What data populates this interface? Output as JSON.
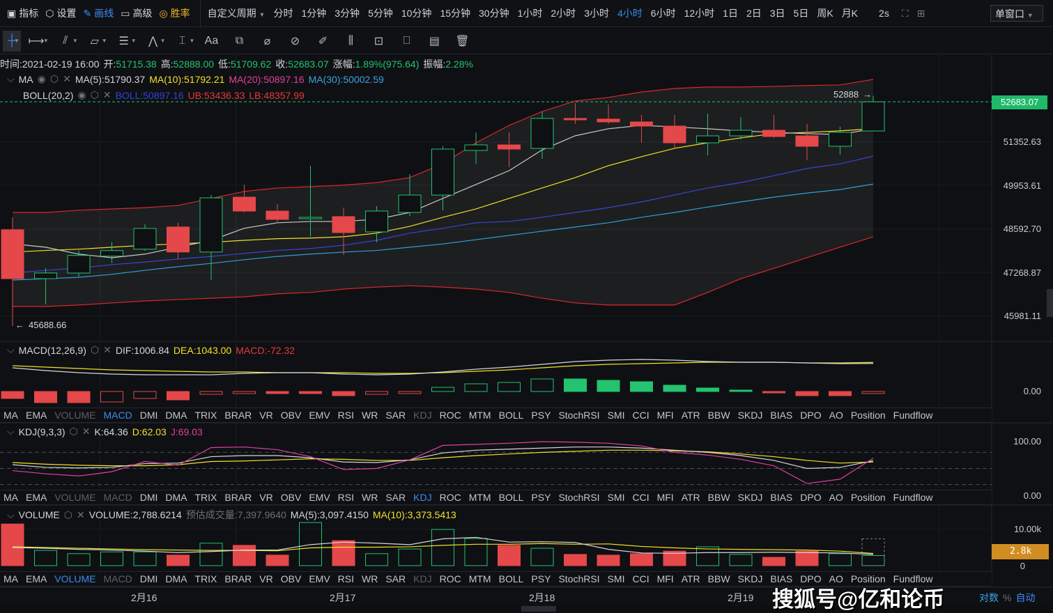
{
  "topbar": {
    "items": [
      {
        "icon": "chart-line-icon",
        "label": "指标"
      },
      {
        "icon": "gear-hex-icon",
        "label": "设置"
      },
      {
        "icon": "pencil-icon",
        "label": "画线"
      },
      {
        "icon": "printer-icon",
        "label": "高级"
      },
      {
        "icon": "target-icon",
        "label": "胜率"
      }
    ],
    "custom_period": "自定义周期",
    "periods": [
      "分时",
      "1分钟",
      "3分钟",
      "5分钟",
      "10分钟",
      "15分钟",
      "30分钟",
      "1小时",
      "2小时",
      "3小时",
      "4小时",
      "6小时",
      "12小时",
      "1日",
      "2日",
      "3日",
      "5日",
      "周K",
      "月K"
    ],
    "active_period": "4小时",
    "refresh": "2s",
    "window_mode": "单窗口"
  },
  "drawbar": {
    "tools": [
      "crosshair-icon",
      "horizontal-ray-icon",
      "trend-line-icon",
      "parallelogram-icon",
      "parallel-channel-icon",
      "wave-icon",
      "measure-icon",
      "text-icon",
      "magnet-icon",
      "eraser-icon",
      "ruler-icon",
      "brush-icon",
      "candle-tool-icon",
      "lock-icon",
      "bookmark-icon",
      "note-icon",
      "trash-icon"
    ],
    "text_tool": "Aa"
  },
  "info": {
    "time_label": "时间:",
    "time": "2021-02-19 16:00",
    "open_label": "开:",
    "open": "51715.38",
    "high_label": "高:",
    "high": "52888.00",
    "low_label": "低:",
    "low": "51709.62",
    "close_label": "收:",
    "close": "52683.07",
    "change_label": "涨幅:",
    "change": "1.89%(975.64)",
    "amp_label": "振幅:",
    "amp": "2.28%"
  },
  "ma": {
    "name": "MA",
    "ma5": "MA(5):51790.37",
    "ma10": "MA(10):51792.21",
    "ma20": "MA(20):50897.16",
    "ma30": "MA(30):50002.59"
  },
  "boll": {
    "name": "BOLL(20,2)",
    "mid": "BOLL:50897.16",
    "ub": "UB:53436.33",
    "lb": "LB:48357.99"
  },
  "price_axis": {
    "ticks": [
      "51352.63",
      "49953.61",
      "48592.70",
      "47268.87",
      "45981.11"
    ],
    "current": "52683.07",
    "high_marker": "52888",
    "low_marker": "45688.66",
    "scale": "log"
  },
  "macd": {
    "name": "MACD(12,26,9)",
    "dif": "DIF:1006.84",
    "dea": "DEA:1043.00",
    "macd": "MACD:-72.32",
    "zero": "0.00"
  },
  "kdj": {
    "name": "KDJ(9,3,3)",
    "k": "K:64.36",
    "d": "D:62.03",
    "j": "J:69.03",
    "top": "100.00",
    "bottom": "0.00"
  },
  "volume": {
    "name": "VOLUME",
    "vol": "VOLUME:2,788.6214",
    "est_label": "预估成交量:",
    "est": "7,397.9640",
    "ma5": "MA(5):3,097.4150",
    "ma10": "MA(10):3,373.5413",
    "top": "10.00k",
    "zero": "0",
    "current": "2.8k"
  },
  "indicator_tabs": [
    "MA",
    "EMA",
    "VOLUME",
    "MACD",
    "DMI",
    "DMA",
    "TRIX",
    "BRAR",
    "VR",
    "OBV",
    "EMV",
    "RSI",
    "WR",
    "SAR",
    "KDJ",
    "ROC",
    "MTM",
    "BOLL",
    "PSY",
    "StochRSI",
    "SMI",
    "CCI",
    "MFI",
    "ATR",
    "BBW",
    "SKDJ",
    "BIAS",
    "DPO",
    "AO",
    "Position",
    "Fundflow"
  ],
  "dates": [
    "2月16",
    "2月17",
    "2月18",
    "2月19"
  ],
  "bottom_right": {
    "log": "对数",
    "pct": "%",
    "auto": "自动"
  },
  "watermark": "搜狐号@亿和论币",
  "colors": {
    "up": "#23c36f",
    "down": "#e5484a",
    "accent": "#3b8cf0",
    "ma5": "#c9c9c9",
    "ma10": "#f2e02a",
    "boll_mid": "#3a45d8",
    "ma30": "#2f9fd8",
    "boll_band": "#d8282c"
  },
  "chart_data": {
    "type": "candlestick",
    "candles": [
      [
        48574,
        48960,
        45688.66,
        47091
      ],
      [
        47091,
        47405,
        46327,
        47260
      ],
      [
        47258,
        47937,
        47154,
        47789
      ],
      [
        47768,
        48190,
        47557,
        47937
      ],
      [
        47979,
        48745,
        47937,
        48616
      ],
      [
        48659,
        48788,
        47683,
        47894
      ],
      [
        47894,
        49656,
        47050,
        49568
      ],
      [
        49590,
        49987,
        49110,
        49154
      ],
      [
        49154,
        49372,
        48788,
        48895
      ],
      [
        48916,
        50587,
        48360,
        48959
      ],
      [
        48981,
        49262,
        47810,
        48488
      ],
      [
        48509,
        49306,
        48190,
        49154
      ],
      [
        49110,
        50319,
        49002,
        49656
      ],
      [
        49656,
        51217,
        49175,
        51126
      ],
      [
        51081,
        51671,
        50654,
        51262
      ],
      [
        51262,
        51671,
        50542,
        51126
      ],
      [
        51148,
        52361,
        50811,
        52130
      ],
      [
        52130,
        52639,
        51946,
        52084
      ],
      [
        52108,
        52593,
        51946,
        52015
      ],
      [
        52015,
        52246,
        51330,
        51877
      ],
      [
        51877,
        52246,
        51148,
        51330
      ],
      [
        51330,
        52292,
        50923,
        51557
      ],
      [
        51557,
        52176,
        51443,
        51740
      ],
      [
        51740,
        52246,
        51489,
        51535
      ],
      [
        51557,
        51946,
        50766,
        51217
      ],
      [
        51217,
        51854,
        50945,
        51671
      ],
      [
        51715.38,
        52888,
        51709.62,
        52683.07
      ]
    ],
    "ma5": [
      48144,
      48040,
      47830,
      47720,
      47830,
      48040,
      48250,
      48620,
      48790,
      48830,
      48830,
      48900,
      49110,
      49550,
      49990,
      50430,
      51100,
      51560,
      51790,
      51900,
      51850,
      51790,
      51720,
      51670,
      51630,
      51600,
      51790.37
    ],
    "ma10": [
      47890,
      47940,
      47980,
      48040,
      48100,
      48140,
      48190,
      48250,
      48300,
      48320,
      48360,
      48470,
      48680,
      48960,
      49220,
      49550,
      49880,
      50210,
      50590,
      50880,
      51150,
      51330,
      51490,
      51630,
      51670,
      51720,
      51792.21
    ],
    "boll_mid": [
      47260,
      47340,
      47410,
      47510,
      47590,
      47680,
      47760,
      47850,
      47940,
      48000,
      48100,
      48250,
      48470,
      48620,
      48790,
      48830,
      48960,
      49110,
      49260,
      49440,
      49660,
      49880,
      50050,
      50270,
      50500,
      50650,
      50897.16
    ],
    "ma30": [
      47050,
      47090,
      47130,
      47220,
      47340,
      47450,
      47550,
      47660,
      47760,
      47830,
      47890,
      47940,
      48040,
      48140,
      48270,
      48400,
      48530,
      48660,
      48790,
      48960,
      49110,
      49280,
      49440,
      49590,
      49720,
      49830,
      50002.59
    ],
    "ub": [
      49110,
      49110,
      49180,
      49220,
      49260,
      49330,
      49550,
      49770,
      49880,
      49920,
      49970,
      50050,
      50210,
      50650,
      51330,
      51900,
      52360,
      52710,
      52830,
      53010,
      53130,
      53180,
      53180,
      53200,
      53230,
      53250,
      53436.33
    ],
    "lb": [
      46266,
      46266,
      46310,
      46370,
      46430,
      46470,
      46510,
      46550,
      46640,
      46680,
      46780,
      46840,
      46880,
      46840,
      46780,
      46680,
      46510,
      46370,
      46310,
      46310,
      46310,
      46680,
      47090,
      47400,
      47720,
      48040,
      48357.99
    ],
    "macd_hist": [
      -250,
      -400,
      -400,
      -375,
      -250,
      -300,
      -100,
      -75,
      -75,
      -75,
      -150,
      -100,
      -75,
      150,
      275,
      325,
      450,
      450,
      400,
      350,
      225,
      125,
      50,
      -50,
      -150,
      -150,
      -72.32
    ],
    "dif": [
      850,
      750,
      675,
      625,
      600,
      600,
      600,
      650,
      675,
      675,
      625,
      600,
      625,
      700,
      800,
      875,
      975,
      1075,
      1125,
      1150,
      1125,
      1075,
      1050,
      1050,
      1025,
      1000,
      1006.84
    ],
    "dea": [
      925,
      875,
      825,
      775,
      750,
      725,
      700,
      700,
      675,
      675,
      675,
      650,
      650,
      675,
      725,
      775,
      850,
      925,
      975,
      1000,
      1025,
      1050,
      1050,
      1050,
      1025,
      1025,
      1043
    ],
    "k": [
      57,
      52,
      51,
      52,
      59,
      60,
      72,
      74,
      74,
      70,
      62,
      61,
      66,
      79,
      84,
      86,
      88,
      90,
      90,
      88,
      84,
      80,
      74,
      65,
      50,
      52,
      64.36
    ],
    "d": [
      61,
      58,
      56,
      55,
      55,
      57,
      63,
      64,
      66,
      68,
      67,
      65,
      65,
      70,
      74,
      77,
      80,
      82,
      84,
      84,
      83,
      81,
      77,
      72,
      65,
      60,
      62.03
    ],
    "j": [
      46,
      40,
      36,
      44,
      63,
      56,
      89,
      90,
      85,
      72,
      48,
      50,
      66,
      93,
      95,
      97,
      100,
      99,
      97,
      92,
      80,
      75,
      67,
      55,
      22,
      30,
      69.03
    ],
    "kdj_levels": [
      80,
      50,
      20
    ],
    "volume_k": [
      11.5,
      4.2,
      3.3,
      3.8,
      3.8,
      2.9,
      6.2,
      5.6,
      2.9,
      11.9,
      6.9,
      3.3,
      4.6,
      10,
      7.5,
      5.6,
      4.8,
      3.1,
      2.9,
      3.3,
      4.0,
      5.2,
      3.1,
      2.3,
      4.0,
      3.3,
      2.79
    ],
    "volume_est_k": 7.4,
    "vol_ma5_k": [
      5.0,
      4.8,
      4.5,
      4.3,
      4.0,
      3.6,
      3.9,
      4.3,
      4.3,
      5.8,
      6.5,
      6.2,
      5.8,
      7.4,
      7.8,
      6.5,
      6.6,
      6.4,
      4.5,
      3.5,
      3.4,
      3.6,
      3.6,
      3.7,
      3.6,
      3.5,
      3.1
    ],
    "vol_ma10_k": [
      5.2,
      5.0,
      4.8,
      4.6,
      4.4,
      4.3,
      4.2,
      4.2,
      4.1,
      4.9,
      5.1,
      5.1,
      5.2,
      5.6,
      5.9,
      5.9,
      6.1,
      5.9,
      6.0,
      5.3,
      4.9,
      4.6,
      4.5,
      4.4,
      4.3,
      4.0,
      3.37
    ]
  }
}
